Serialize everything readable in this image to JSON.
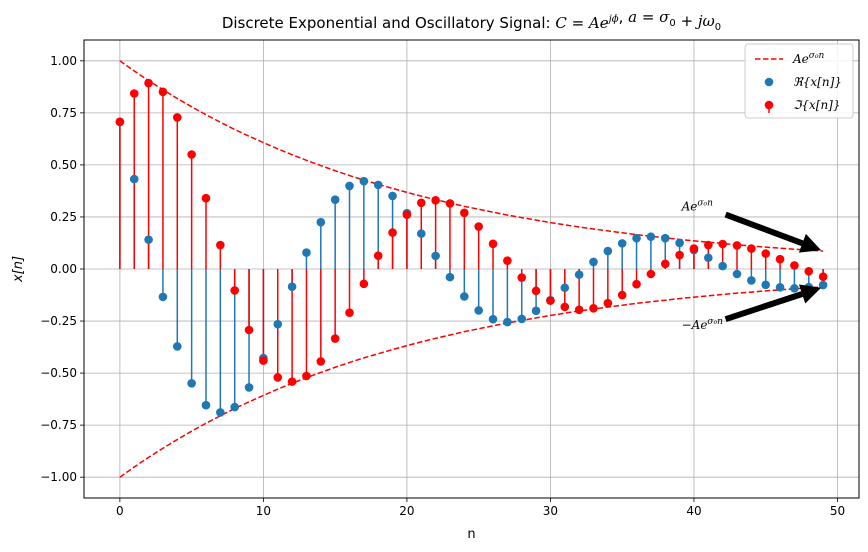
{
  "chart_data": {
    "type": "scatter",
    "title": "Discrete Exponential and Oscillatory Signal: C = Ae^{jϕ}, a = σ₀ + jω₀",
    "xlabel": "n",
    "ylabel": "x[n]",
    "xlim": [
      -2.5,
      51.5
    ],
    "ylim": [
      -1.1,
      1.1
    ],
    "xticks": [
      0,
      10,
      20,
      30,
      40,
      50
    ],
    "yticks": [
      -1.0,
      -0.75,
      -0.5,
      -0.25,
      0.0,
      0.25,
      0.5,
      0.75,
      1.0
    ],
    "grid": true,
    "legend_position": "top-right",
    "n": [
      0,
      1,
      2,
      3,
      4,
      5,
      6,
      7,
      8,
      9,
      10,
      11,
      12,
      13,
      14,
      15,
      16,
      17,
      18,
      19,
      20,
      21,
      22,
      23,
      24,
      25,
      26,
      27,
      28,
      29,
      30,
      31,
      32,
      33,
      34,
      35,
      36,
      37,
      38,
      39,
      40,
      41,
      42,
      43,
      44,
      45,
      46,
      47,
      48,
      49
    ],
    "series": [
      {
        "name": "Ae^{σ₀n}",
        "style": "dashed",
        "color": "#ff0000",
        "values": [
          1.0,
          0.951,
          0.905,
          0.861,
          0.819,
          0.779,
          0.741,
          0.705,
          0.67,
          0.638,
          0.607,
          0.577,
          0.549,
          0.522,
          0.497,
          0.472,
          0.449,
          0.427,
          0.407,
          0.387,
          0.368,
          0.35,
          0.333,
          0.317,
          0.301,
          0.287,
          0.273,
          0.259,
          0.247,
          0.235,
          0.223,
          0.212,
          0.202,
          0.192,
          0.183,
          0.174,
          0.165,
          0.157,
          0.15,
          0.142,
          0.135,
          0.129,
          0.122,
          0.116,
          0.111,
          0.105,
          0.1,
          0.095,
          0.091,
          0.086
        ]
      },
      {
        "name": "ℜ{x[n]}",
        "style": "stem",
        "color": "#1f77b4",
        "values": [
          0.707,
          0.432,
          0.141,
          -0.134,
          -0.372,
          -0.549,
          -0.654,
          -0.689,
          -0.663,
          -0.569,
          -0.428,
          -0.265,
          -0.085,
          0.079,
          0.225,
          0.333,
          0.399,
          0.422,
          0.404,
          0.351,
          0.268,
          0.17,
          0.063,
          -0.039,
          -0.132,
          -0.199,
          -0.241,
          -0.255,
          -0.24,
          -0.201,
          -0.15,
          -0.09,
          -0.027,
          0.034,
          0.086,
          0.123,
          0.148,
          0.155,
          0.148,
          0.125,
          0.091,
          0.054,
          0.014,
          -0.024,
          -0.055,
          -0.076,
          -0.088,
          -0.093,
          -0.087,
          -0.077
        ]
      },
      {
        "name": "ℑ{x[n]}",
        "style": "stem",
        "color": "#ff0000",
        "values": [
          0.707,
          0.843,
          0.893,
          0.851,
          0.728,
          0.55,
          0.34,
          0.115,
          -0.103,
          -0.293,
          -0.44,
          -0.521,
          -0.541,
          -0.514,
          -0.444,
          -0.334,
          -0.21,
          -0.071,
          0.064,
          0.175,
          0.261,
          0.318,
          0.33,
          0.315,
          0.27,
          0.204,
          0.121,
          0.04,
          -0.041,
          -0.105,
          -0.152,
          -0.182,
          -0.196,
          -0.189,
          -0.164,
          -0.125,
          -0.073,
          -0.024,
          0.025,
          0.067,
          0.098,
          0.115,
          0.12,
          0.113,
          0.098,
          0.074,
          0.047,
          0.017,
          -0.011,
          -0.037
        ]
      }
    ],
    "annotations": [
      {
        "text": "Ae^{σ₀n}",
        "x": 39,
        "y": 0.3,
        "arrow_to": [
          49,
          0.09
        ]
      },
      {
        "text": "−Ae^{σ₀n}",
        "x": 39,
        "y": -0.27,
        "arrow_to": [
          49,
          -0.09
        ]
      }
    ]
  }
}
